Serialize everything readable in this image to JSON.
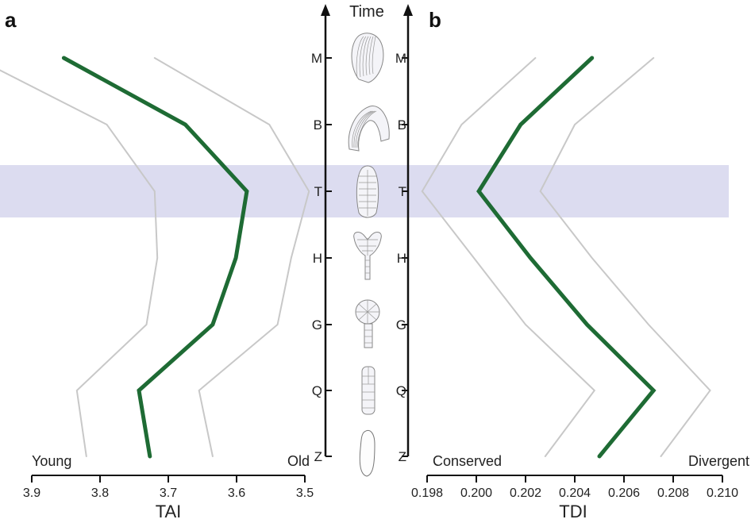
{
  "colors": {
    "main_line": "#1e6b34",
    "ci_line": "#c8c8c8",
    "highlight_band": "#dcdcf0",
    "axis": "#111111"
  },
  "time_axis": {
    "title": "Time",
    "stages": [
      "Z",
      "Q",
      "G",
      "H",
      "T",
      "B",
      "M"
    ],
    "highlighted_stage": "T"
  },
  "chart_data": [
    {
      "panel": "a",
      "type": "line",
      "xlabel": "TAI",
      "xlim": [
        3.9,
        3.5
      ],
      "xticks": [
        "3.9",
        "3.8",
        "3.7",
        "3.6",
        "3.5"
      ],
      "left_label": "Young",
      "right_label": "Old",
      "categories": [
        "Z",
        "Q",
        "G",
        "H",
        "T",
        "B",
        "M"
      ],
      "series": [
        {
          "values": [
            3.727,
            3.743,
            3.635,
            3.601,
            3.585,
            3.675,
            3.853
          ]
        },
        {
          "values": [
            3.82,
            3.834,
            3.732,
            3.716,
            3.72,
            3.79,
            3.982
          ]
        },
        {
          "values": [
            3.635,
            3.655,
            3.54,
            3.52,
            3.494,
            3.552,
            3.72
          ]
        }
      ]
    },
    {
      "panel": "b",
      "type": "line",
      "xlabel": "TDI",
      "xlim": [
        0.198,
        0.21
      ],
      "xticks": [
        "0.198",
        "0.200",
        "0.202",
        "0.204",
        "0.206",
        "0.208",
        "0.210"
      ],
      "left_label": "Conserved",
      "right_label": "Divergent",
      "categories": [
        "Z",
        "Q",
        "G",
        "H",
        "T",
        "B",
        "M"
      ],
      "series": [
        {
          "values": [
            0.205,
            0.2072,
            0.2045,
            0.2022,
            0.2001,
            0.2018,
            0.2047
          ]
        },
        {
          "values": [
            0.2028,
            0.2048,
            0.202,
            0.1999,
            0.1978,
            0.1994,
            0.2024
          ]
        },
        {
          "values": [
            0.2075,
            0.2095,
            0.207,
            0.2047,
            0.2026,
            0.204,
            0.2072
          ]
        }
      ]
    }
  ]
}
